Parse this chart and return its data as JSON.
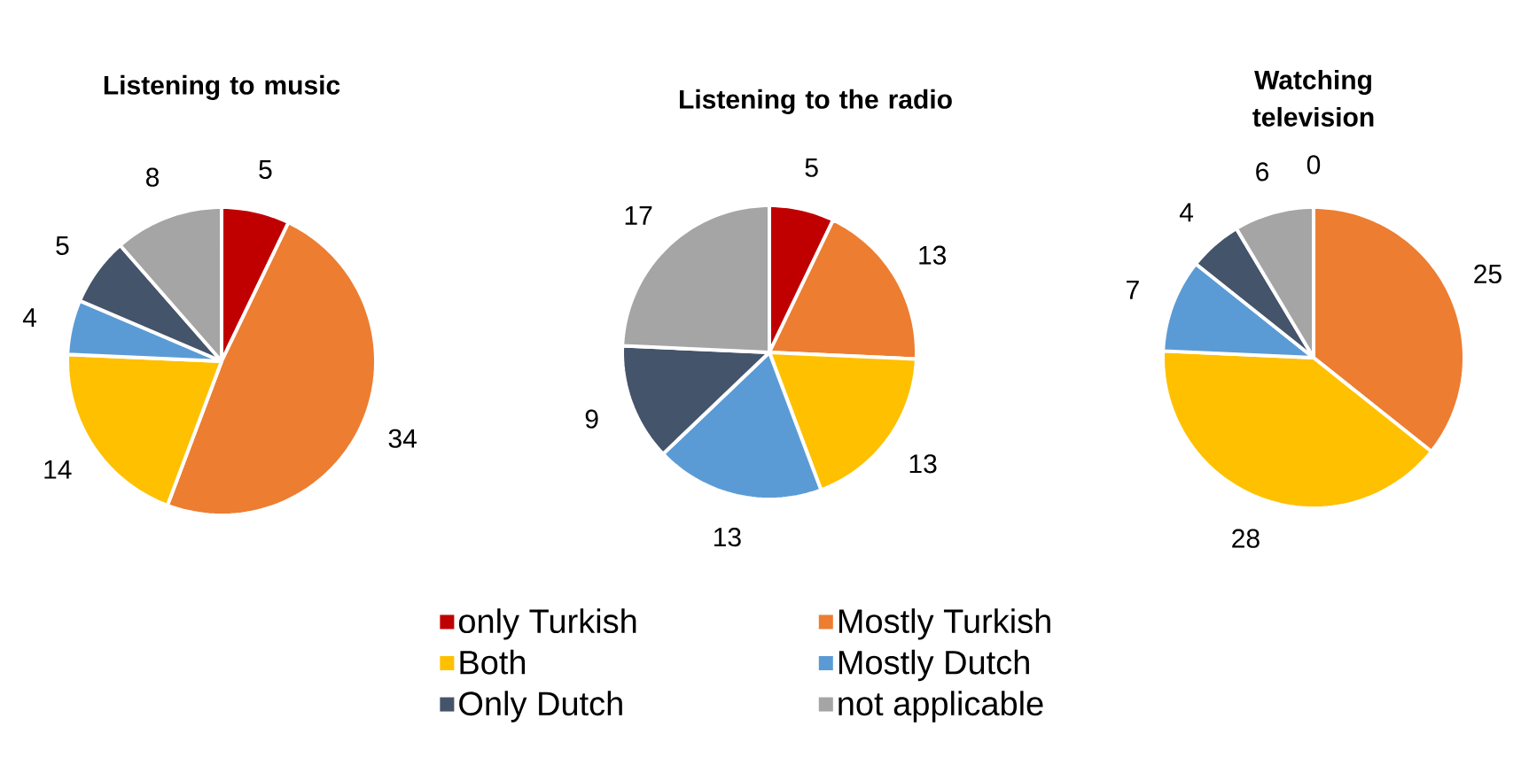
{
  "chart_data": [
    {
      "type": "pie",
      "title": "Listening to music",
      "categories": [
        null,
        null,
        null,
        null,
        null,
        null
      ],
      "values": [
        5,
        34,
        14,
        4,
        5,
        8
      ],
      "colors": [
        "#c00000",
        "#ed7d31",
        "#ffc000",
        "#5b9bd5",
        "#44546a",
        "#a5a5a5"
      ],
      "data_labels": true
    },
    {
      "type": "pie",
      "title": "Listening to the radio",
      "categories": [
        "only Turkish",
        "Mostly Turkish",
        "Both",
        "Mostly Dutch",
        "Only Dutch",
        "not applicable"
      ],
      "values": [
        5,
        13,
        13,
        13,
        9,
        17
      ],
      "colors": [
        "#c00000",
        "#ed7d31",
        "#ffc000",
        "#5b9bd5",
        "#44546a",
        "#a5a5a5"
      ],
      "data_labels": true,
      "legend": "bottom"
    },
    {
      "type": "pie",
      "title": "Watching television",
      "categories": [
        null,
        null,
        null,
        null,
        null,
        null
      ],
      "values": [
        0,
        25,
        28,
        7,
        4,
        6
      ],
      "value_labels": [
        "0",
        "25",
        "28",
        "7",
        "4",
        "6"
      ],
      "colors": [
        "#c00000",
        "#ed7d31",
        "#ffc000",
        "#5b9bd5",
        "#44546a",
        "#a5a5a5"
      ]
    }
  ]
}
